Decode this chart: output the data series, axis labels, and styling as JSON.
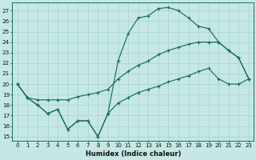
{
  "xlabel": "Humidex (Indice chaleur)",
  "bg_color": "#c5e8e5",
  "line_color": "#1a6b6b",
  "grid_color": "#a8d0cc",
  "xlim": [
    -0.5,
    23.5
  ],
  "ylim": [
    14.6,
    27.8
  ],
  "yticks": [
    15,
    16,
    17,
    18,
    19,
    20,
    21,
    22,
    23,
    24,
    25,
    26,
    27
  ],
  "xticks": [
    0,
    1,
    2,
    3,
    4,
    5,
    6,
    7,
    8,
    9,
    10,
    11,
    12,
    13,
    14,
    15,
    16,
    17,
    18,
    19,
    20,
    21,
    22,
    23
  ],
  "hours": [
    0,
    1,
    2,
    3,
    4,
    5,
    6,
    7,
    8,
    9,
    10,
    11,
    12,
    13,
    14,
    15,
    16,
    17,
    18,
    19,
    20,
    21,
    22,
    23
  ],
  "line_top": [
    20.0,
    18.7,
    18.0,
    17.2,
    17.6,
    15.7,
    16.5,
    16.5,
    15.0,
    17.2,
    22.2,
    24.8,
    26.3,
    26.5,
    27.2,
    27.3,
    27.0,
    26.3,
    25.5,
    25.3,
    24.0,
    23.2,
    22.5,
    20.5
  ],
  "line_mid": [
    20.0,
    18.7,
    18.5,
    18.5,
    18.5,
    18.5,
    18.8,
    19.0,
    19.2,
    19.5,
    20.5,
    21.2,
    21.8,
    22.2,
    22.8,
    23.2,
    23.5,
    23.8,
    24.0,
    24.0,
    24.0,
    23.2,
    22.5,
    20.5
  ],
  "line_bot": [
    20.0,
    18.7,
    18.0,
    17.2,
    17.6,
    15.7,
    16.5,
    16.5,
    15.0,
    17.2,
    18.2,
    18.7,
    19.2,
    19.5,
    19.8,
    20.2,
    20.5,
    20.8,
    21.2,
    21.5,
    20.5,
    20.0,
    20.0,
    20.5
  ]
}
